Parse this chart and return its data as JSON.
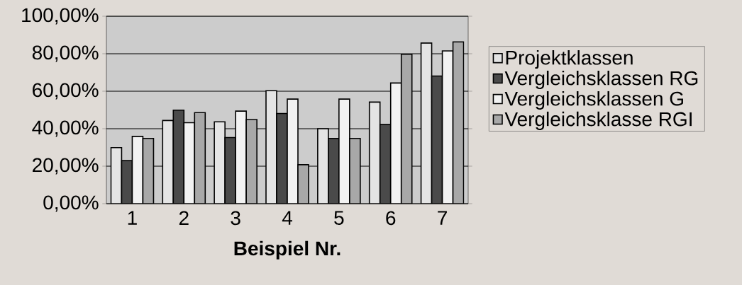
{
  "chart_data": {
    "type": "bar",
    "xlabel": "Beispiel Nr.",
    "categories": [
      "1",
      "2",
      "3",
      "4",
      "5",
      "6",
      "7"
    ],
    "series": [
      {
        "name": "Projektklassen",
        "color": "#e4e4e4",
        "values": [
          29.9,
          44.4,
          43.7,
          60.3,
          40.0,
          54.2,
          85.7
        ]
      },
      {
        "name": "Vergleichsklassen RG",
        "color": "#4a4a4a",
        "values": [
          23.0,
          49.9,
          35.3,
          48.1,
          34.8,
          42.2,
          68.1
        ]
      },
      {
        "name": "Vergleichsklassen G",
        "color": "#f2f2f2",
        "values": [
          35.9,
          43.2,
          49.4,
          55.8,
          55.8,
          64.4,
          81.5
        ]
      },
      {
        "name": "Vergleichsklasse RGI",
        "color": "#a8a8a8",
        "values": [
          34.8,
          48.6,
          44.9,
          20.8,
          34.8,
          79.7,
          86.3
        ]
      }
    ],
    "ylim": [
      0,
      100
    ],
    "yticks": [
      {
        "value": 0,
        "label": "0,00%"
      },
      {
        "value": 20,
        "label": "20,00%"
      },
      {
        "value": 40,
        "label": "40,00%"
      },
      {
        "value": 60,
        "label": "60,00%"
      },
      {
        "value": 80,
        "label": "80,00%"
      },
      {
        "value": 100,
        "label": "100,00%"
      }
    ],
    "grid": "y",
    "legend": "right"
  }
}
